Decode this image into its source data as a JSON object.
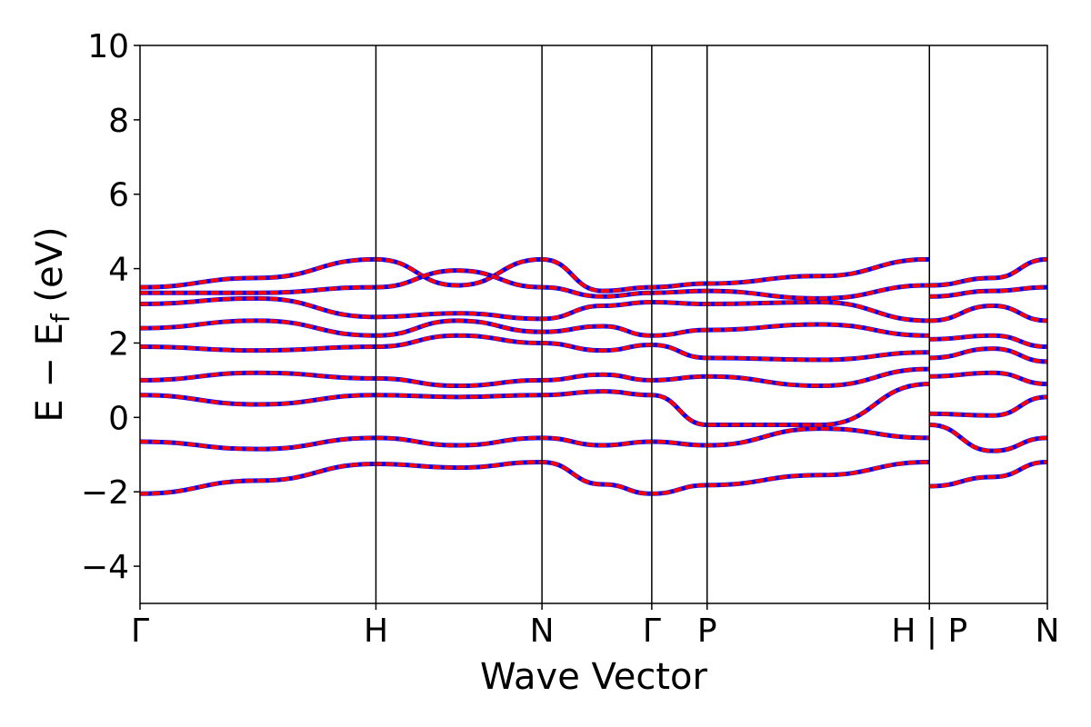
{
  "chart_data": {
    "type": "line",
    "title": "",
    "xlabel": "Wave Vector",
    "ylabel": "E − E",
    "ylabel_subscript": "f",
    "ylabel_unit": " (eV)",
    "ylim": [
      -5,
      10
    ],
    "yticks": [
      -4,
      -2,
      0,
      2,
      4,
      6,
      8,
      10
    ],
    "ytick_labels": [
      "−4",
      "−2",
      "0",
      "2",
      "4",
      "6",
      "8",
      "10"
    ],
    "x_range": [
      0,
      1
    ],
    "kpoints": [
      {
        "label": "Γ",
        "x": 0.0
      },
      {
        "label": "H",
        "x": 0.26
      },
      {
        "label": "N",
        "x": 0.443
      },
      {
        "label": "Γ",
        "x": 0.564
      },
      {
        "label": "P",
        "x": 0.625
      },
      {
        "label": "H | P",
        "x": 0.87
      },
      {
        "label": "N",
        "x": 1.0
      }
    ],
    "grid": false,
    "colors": {
      "overlay": "#0000ff",
      "main": "#ff0000",
      "axes": "#000000"
    },
    "series": [
      {
        "values": [
          [
            0,
            -2.05
          ],
          [
            0.13,
            -1.7
          ],
          [
            0.26,
            -1.25
          ],
          [
            0.35,
            -1.35
          ],
          [
            0.443,
            -1.2
          ],
          [
            0.51,
            -1.8
          ],
          [
            0.564,
            -2.05
          ],
          [
            0.625,
            -1.82
          ],
          [
            0.75,
            -1.55
          ],
          [
            0.87,
            -1.2
          ]
        ]
      },
      {
        "values": [
          [
            0,
            -0.65
          ],
          [
            0.13,
            -0.85
          ],
          [
            0.26,
            -0.55
          ],
          [
            0.35,
            -0.75
          ],
          [
            0.443,
            -0.55
          ],
          [
            0.51,
            -0.75
          ],
          [
            0.564,
            -0.65
          ],
          [
            0.625,
            -0.75
          ],
          [
            0.75,
            -0.3
          ],
          [
            0.87,
            -0.55
          ]
        ]
      },
      {
        "values": [
          [
            0,
            0.6
          ],
          [
            0.13,
            0.35
          ],
          [
            0.26,
            0.6
          ],
          [
            0.35,
            0.55
          ],
          [
            0.443,
            0.6
          ],
          [
            0.51,
            0.7
          ],
          [
            0.564,
            0.6
          ],
          [
            0.625,
            -0.2
          ],
          [
            0.75,
            -0.2
          ],
          [
            0.87,
            0.9
          ]
        ]
      },
      {
        "values": [
          [
            0,
            1.0
          ],
          [
            0.13,
            1.2
          ],
          [
            0.26,
            1.05
          ],
          [
            0.35,
            0.85
          ],
          [
            0.443,
            1.0
          ],
          [
            0.51,
            1.15
          ],
          [
            0.564,
            1.0
          ],
          [
            0.625,
            1.1
          ],
          [
            0.75,
            0.85
          ],
          [
            0.87,
            1.3
          ]
        ]
      },
      {
        "values": [
          [
            0,
            1.9
          ],
          [
            0.13,
            1.8
          ],
          [
            0.26,
            1.9
          ],
          [
            0.35,
            2.2
          ],
          [
            0.443,
            2.0
          ],
          [
            0.51,
            1.8
          ],
          [
            0.564,
            1.95
          ],
          [
            0.625,
            1.6
          ],
          [
            0.75,
            1.55
          ],
          [
            0.87,
            1.75
          ]
        ]
      },
      {
        "values": [
          [
            0,
            2.4
          ],
          [
            0.13,
            2.6
          ],
          [
            0.26,
            2.2
          ],
          [
            0.35,
            2.6
          ],
          [
            0.443,
            2.3
          ],
          [
            0.51,
            2.45
          ],
          [
            0.564,
            2.2
          ],
          [
            0.625,
            2.35
          ],
          [
            0.75,
            2.5
          ],
          [
            0.87,
            2.2
          ]
        ]
      },
      {
        "values": [
          [
            0,
            3.05
          ],
          [
            0.13,
            3.2
          ],
          [
            0.26,
            2.7
          ],
          [
            0.35,
            2.8
          ],
          [
            0.443,
            2.65
          ],
          [
            0.51,
            3.0
          ],
          [
            0.564,
            3.1
          ],
          [
            0.625,
            3.05
          ],
          [
            0.75,
            3.1
          ],
          [
            0.87,
            2.6
          ]
        ]
      },
      {
        "values": [
          [
            0,
            3.5
          ],
          [
            0.13,
            3.75
          ],
          [
            0.26,
            4.25
          ],
          [
            0.35,
            3.55
          ],
          [
            0.443,
            4.25
          ],
          [
            0.51,
            3.4
          ],
          [
            0.564,
            3.5
          ],
          [
            0.625,
            3.6
          ],
          [
            0.75,
            3.8
          ],
          [
            0.87,
            4.25
          ]
        ]
      },
      {
        "values": [
          [
            0,
            3.35
          ],
          [
            0.13,
            3.35
          ],
          [
            0.26,
            3.5
          ],
          [
            0.35,
            3.95
          ],
          [
            0.443,
            3.5
          ],
          [
            0.51,
            3.25
          ],
          [
            0.564,
            3.35
          ],
          [
            0.625,
            3.4
          ],
          [
            0.75,
            3.2
          ],
          [
            0.87,
            3.55
          ]
        ]
      }
    ],
    "segment2_series": [
      {
        "values": [
          [
            0.87,
            -1.85
          ],
          [
            0.94,
            -1.6
          ],
          [
            1.0,
            -1.2
          ]
        ]
      },
      {
        "values": [
          [
            0.87,
            -0.2
          ],
          [
            0.94,
            -0.9
          ],
          [
            1.0,
            -0.55
          ]
        ]
      },
      {
        "values": [
          [
            0.87,
            0.1
          ],
          [
            0.94,
            0.05
          ],
          [
            1.0,
            0.55
          ]
        ]
      },
      {
        "values": [
          [
            0.87,
            1.1
          ],
          [
            0.94,
            1.2
          ],
          [
            1.0,
            0.9
          ]
        ]
      },
      {
        "values": [
          [
            0.87,
            1.6
          ],
          [
            0.94,
            1.85
          ],
          [
            1.0,
            1.5
          ]
        ]
      },
      {
        "values": [
          [
            0.87,
            2.1
          ],
          [
            0.94,
            2.2
          ],
          [
            1.0,
            1.9
          ]
        ]
      },
      {
        "values": [
          [
            0.87,
            2.6
          ],
          [
            0.94,
            3.0
          ],
          [
            1.0,
            2.6
          ]
        ]
      },
      {
        "values": [
          [
            0.87,
            3.25
          ],
          [
            0.94,
            3.4
          ],
          [
            1.0,
            3.5
          ]
        ]
      },
      {
        "values": [
          [
            0.87,
            3.55
          ],
          [
            0.94,
            3.75
          ],
          [
            1.0,
            4.25
          ]
        ]
      }
    ]
  }
}
